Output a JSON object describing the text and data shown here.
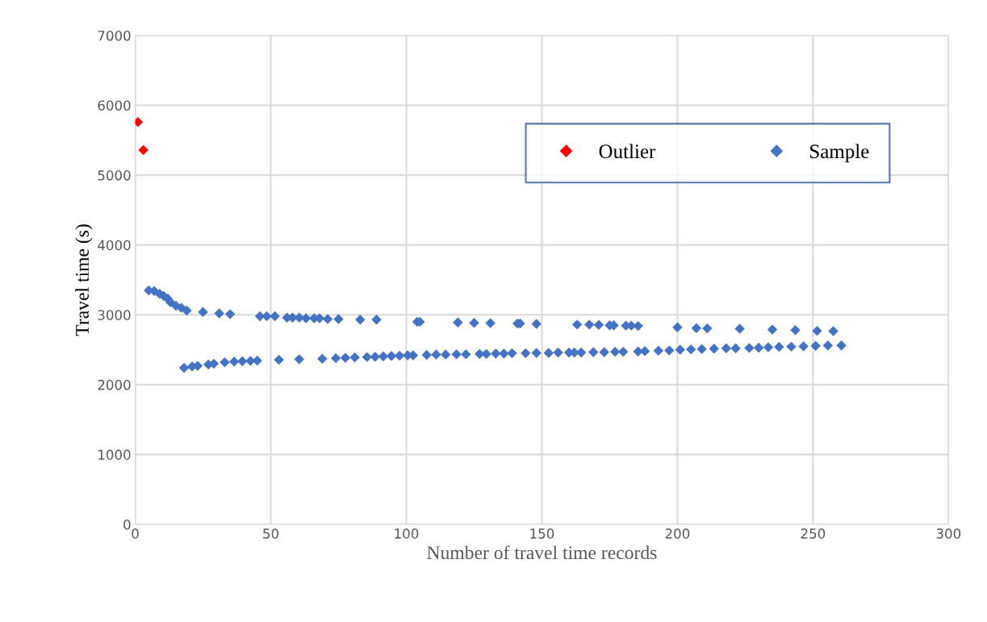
{
  "chart_data": {
    "type": "scatter",
    "xlabel": "Number of travel time records",
    "ylabel": "Travel time (s)",
    "xlim": [
      0,
      300
    ],
    "xticks": [
      0,
      50,
      100,
      150,
      200,
      250,
      300
    ],
    "ylim": [
      0,
      7000
    ],
    "yticks": [
      0,
      1000,
      2000,
      3000,
      4000,
      5000,
      6000,
      7000
    ],
    "grid": true,
    "legend": "top right",
    "marker": "diamond",
    "series": [
      {
        "name": "Outlier",
        "color": "#ff0000",
        "x": [
          1,
          3
        ],
        "values": [
          5760,
          5360
        ]
      },
      {
        "name": "Sample",
        "color": "#4472c4",
        "x": [
          5,
          7,
          9,
          10.5,
          12,
          13,
          15,
          17,
          19,
          25,
          31,
          35,
          46,
          48.5,
          51.5,
          56,
          58,
          60.5,
          63,
          66,
          68,
          71,
          75,
          83,
          89,
          104,
          105,
          119,
          125,
          131,
          141,
          142,
          148,
          163,
          167.5,
          171,
          175,
          176.5,
          181,
          183,
          185.5,
          200,
          207,
          211,
          223,
          235,
          243.5,
          251.5,
          257.5,
          18,
          21,
          23,
          27,
          29,
          33,
          36.5,
          39.5,
          42.5,
          45,
          53,
          60.5,
          69,
          74,
          77.5,
          81,
          85.5,
          88.5,
          91.5,
          94.5,
          97.5,
          100.5,
          102.5,
          107.5,
          111,
          114.5,
          118.5,
          122,
          127,
          129.5,
          133,
          136,
          139,
          144,
          148,
          152.5,
          156,
          160,
          162,
          164.5,
          169,
          173,
          177,
          180,
          185.5,
          188,
          193,
          197,
          201,
          205,
          209,
          213.5,
          218,
          221.5,
          226.5,
          230,
          233.5,
          237.5,
          242,
          246.5,
          251,
          255.5,
          260.5
        ],
        "values": [
          3350,
          3340,
          3300,
          3270,
          3230,
          3180,
          3130,
          3100,
          3060,
          3040,
          3020,
          3010,
          2980,
          2980,
          2980,
          2960,
          2960,
          2960,
          2950,
          2950,
          2950,
          2940,
          2940,
          2930,
          2930,
          2900,
          2900,
          2890,
          2885,
          2880,
          2875,
          2875,
          2870,
          2860,
          2860,
          2855,
          2850,
          2850,
          2845,
          2845,
          2840,
          2820,
          2810,
          2805,
          2800,
          2790,
          2780,
          2770,
          2765,
          2240,
          2260,
          2270,
          2290,
          2300,
          2320,
          2330,
          2335,
          2340,
          2345,
          2355,
          2365,
          2370,
          2380,
          2385,
          2390,
          2395,
          2400,
          2405,
          2410,
          2415,
          2420,
          2420,
          2425,
          2430,
          2430,
          2435,
          2435,
          2440,
          2440,
          2445,
          2445,
          2450,
          2450,
          2455,
          2455,
          2460,
          2460,
          2460,
          2460,
          2465,
          2465,
          2470,
          2470,
          2475,
          2480,
          2485,
          2490,
          2500,
          2505,
          2510,
          2515,
          2520,
          2520,
          2525,
          2530,
          2535,
          2540,
          2545,
          2550,
          2555,
          2560,
          2560
        ]
      }
    ]
  }
}
